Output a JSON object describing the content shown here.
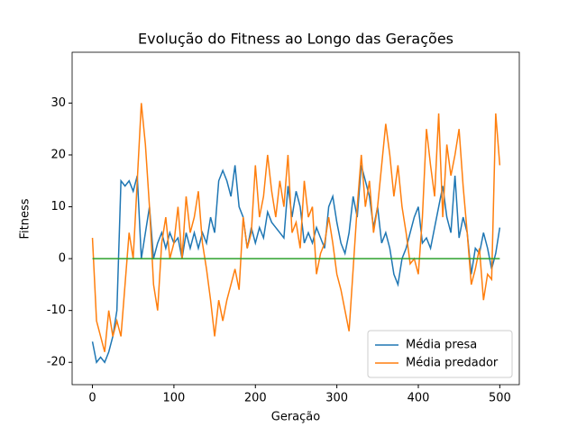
{
  "chart_data": {
    "type": "line",
    "title": "Evolução do Fitness ao Longo das Gerações",
    "xlabel": "Geração",
    "ylabel": "Fitness",
    "x": [
      0,
      5,
      10,
      15,
      20,
      25,
      30,
      35,
      40,
      45,
      50,
      55,
      60,
      65,
      70,
      75,
      80,
      85,
      90,
      95,
      100,
      105,
      110,
      115,
      120,
      125,
      130,
      135,
      140,
      145,
      150,
      155,
      160,
      165,
      170,
      175,
      180,
      185,
      190,
      195,
      200,
      205,
      210,
      215,
      220,
      225,
      230,
      235,
      240,
      245,
      250,
      255,
      260,
      265,
      270,
      275,
      280,
      285,
      290,
      295,
      300,
      305,
      310,
      315,
      320,
      325,
      330,
      335,
      340,
      345,
      350,
      355,
      360,
      365,
      370,
      375,
      380,
      385,
      390,
      395,
      400,
      405,
      410,
      415,
      420,
      425,
      430,
      435,
      440,
      445,
      450,
      455,
      460,
      465,
      470,
      475,
      480,
      485,
      490,
      495,
      500
    ],
    "series": [
      {
        "name": "Média presa",
        "color": "#1f77b4",
        "values": [
          -16,
          -20,
          -19,
          -20,
          -18,
          -15,
          -10,
          15,
          14,
          15,
          13,
          16,
          0,
          5,
          10,
          0,
          3,
          5,
          2,
          5,
          3,
          4,
          0,
          5,
          2,
          5,
          2,
          5,
          3,
          8,
          5,
          15,
          17,
          15,
          12,
          18,
          10,
          8,
          2,
          6,
          3,
          6,
          4,
          9,
          7,
          6,
          5,
          4,
          14,
          8,
          13,
          10,
          3,
          5,
          3,
          6,
          4,
          2,
          10,
          12,
          7,
          3,
          1,
          5,
          12,
          8,
          18,
          15,
          12,
          6,
          10,
          3,
          5,
          2,
          -3,
          -5,
          0,
          2,
          5,
          8,
          10,
          3,
          4,
          2,
          6,
          10,
          14,
          8,
          5,
          16,
          4,
          8,
          5,
          -3,
          2,
          1,
          5,
          2,
          -2,
          1,
          6
        ]
      },
      {
        "name": "Média predador",
        "color": "#ff7f0e",
        "values": [
          4,
          -12,
          -15,
          -18,
          -10,
          -15,
          -12,
          -15,
          -5,
          5,
          0,
          15,
          30,
          22,
          10,
          -5,
          -10,
          3,
          8,
          0,
          3,
          10,
          0,
          12,
          5,
          8,
          13,
          3,
          -2,
          -8,
          -15,
          -8,
          -12,
          -8,
          -5,
          -2,
          -6,
          8,
          2,
          5,
          18,
          8,
          12,
          20,
          13,
          8,
          15,
          10,
          20,
          5,
          7,
          2,
          15,
          8,
          10,
          -3,
          1,
          3,
          8,
          3,
          -3,
          -6,
          -10,
          -14,
          -2,
          10,
          20,
          10,
          15,
          5,
          10,
          18,
          26,
          20,
          12,
          18,
          10,
          5,
          -1,
          0,
          -3,
          8,
          25,
          18,
          12,
          28,
          8,
          22,
          16,
          20,
          25,
          14,
          5,
          -5,
          -2,
          2,
          -8,
          -3,
          -4,
          28,
          18
        ]
      }
    ],
    "hline": {
      "y": 0,
      "xrange": [
        0,
        500
      ],
      "color": "#2ca02c"
    },
    "xlim": [
      -24.95,
      523.95
    ],
    "xticks": [
      0,
      100,
      200,
      300,
      400,
      500
    ],
    "ylim": [
      -24.3,
      39.8
    ],
    "yticks": [
      -20,
      -10,
      0,
      10,
      20,
      30
    ],
    "legend": "lower right"
  }
}
